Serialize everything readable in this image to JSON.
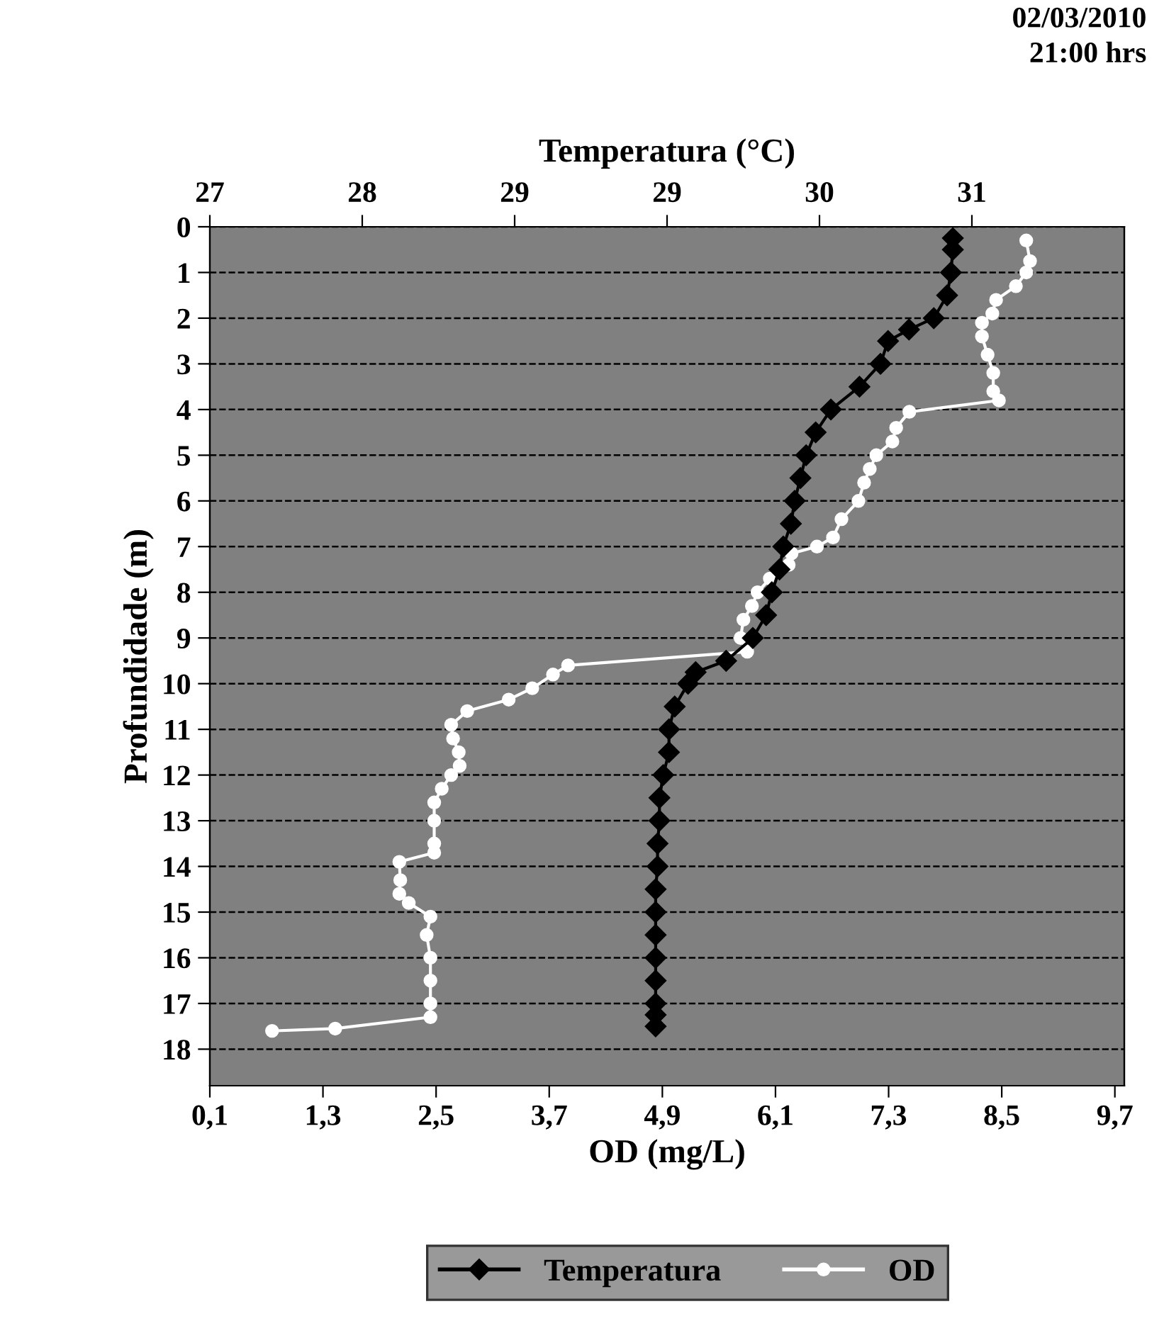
{
  "chart_data": {
    "type": "line",
    "xlabel": "OD (mg/L)",
    "x2label": "Temperatura (°C)",
    "ylabel": "Profundidade (m)",
    "annotations": [
      "02/03/2010\n21:00 hrs"
    ],
    "xlim": [
      0.1,
      9.8
    ],
    "xticks": [
      {
        "value": 0.1,
        "label": "0,1"
      },
      {
        "value": 1.3,
        "label": "1,3"
      },
      {
        "value": 2.5,
        "label": "2,5"
      },
      {
        "value": 3.7,
        "label": "3,7"
      },
      {
        "value": 4.9,
        "label": "4,9"
      },
      {
        "value": 6.1,
        "label": "6,1"
      },
      {
        "value": 7.3,
        "label": "7,3"
      },
      {
        "value": 8.5,
        "label": "8,5"
      },
      {
        "value": 9.7,
        "label": "9,7"
      }
    ],
    "x2lim": [
      27,
      31.8
    ],
    "x2ticks": [
      {
        "value": 27,
        "label": "27"
      },
      {
        "value": 27.8,
        "label": "28"
      },
      {
        "value": 28.6,
        "label": "29"
      },
      {
        "value": 29.4,
        "label": "29"
      },
      {
        "value": 30.2,
        "label": "30"
      },
      {
        "value": 31.0,
        "label": "31"
      }
    ],
    "ylim": [
      18.8,
      0
    ],
    "yticks": [
      0,
      1,
      2,
      3,
      4,
      5,
      6,
      7,
      8,
      9,
      10,
      11,
      12,
      13,
      14,
      15,
      16,
      17,
      18
    ],
    "grid": "y",
    "legend": "bottom",
    "series": [
      {
        "name": "Temperatura",
        "color": "#000000",
        "axis": "x2",
        "marker": "diamond",
        "x": [
          30.9,
          30.9,
          30.89,
          30.87,
          30.8,
          30.67,
          30.56,
          30.52,
          30.41,
          30.26,
          30.18,
          30.13,
          30.1,
          30.07,
          30.05,
          30.01,
          29.99,
          29.95,
          29.92,
          29.85,
          29.71,
          29.55,
          29.51,
          29.44,
          29.41,
          29.41,
          29.38,
          29.36,
          29.36,
          29.35,
          29.35,
          29.34,
          29.34,
          29.34,
          29.34,
          29.34,
          29.34,
          29.34,
          29.34
        ],
        "values": [
          0.25,
          0.5,
          1,
          1.5,
          2,
          2.25,
          2.5,
          3,
          3.5,
          4,
          4.5,
          5,
          5.5,
          6,
          6.5,
          7,
          7.5,
          8,
          8.5,
          9,
          9.5,
          9.75,
          10,
          10.5,
          11,
          11.5,
          12,
          12.5,
          13,
          13.5,
          14,
          14.5,
          15,
          15.5,
          16,
          16.5,
          17,
          17.25,
          17.5
        ]
      },
      {
        "name": "OD",
        "color": "#ffffff",
        "marker": "circle",
        "x": [
          8.76,
          8.8,
          8.76,
          8.65,
          8.44,
          8.4,
          8.29,
          8.29,
          8.35,
          8.41,
          8.41,
          8.47,
          7.52,
          7.38,
          7.34,
          7.17,
          7.1,
          7.04,
          6.98,
          6.8,
          6.71,
          6.54,
          6.27,
          6.24,
          6.04,
          5.91,
          5.85,
          5.76,
          5.73,
          5.8,
          3.9,
          3.74,
          3.52,
          3.27,
          2.83,
          2.66,
          2.68,
          2.74,
          2.75,
          2.66,
          2.56,
          2.48,
          2.48,
          2.48,
          2.48,
          2.11,
          2.12,
          2.11,
          2.21,
          2.44,
          2.4,
          2.44,
          2.44,
          2.44,
          2.44,
          1.43,
          0.76
        ],
        "values": [
          0.3,
          0.75,
          1,
          1.3,
          1.6,
          1.9,
          2.1,
          2.4,
          2.8,
          3.2,
          3.6,
          3.8,
          4.05,
          4.4,
          4.7,
          5,
          5.3,
          5.6,
          6,
          6.4,
          6.8,
          7,
          7.15,
          7.4,
          7.7,
          8,
          8.3,
          8.6,
          9,
          9.3,
          9.6,
          9.8,
          10.1,
          10.35,
          10.6,
          10.9,
          11.2,
          11.5,
          11.8,
          12,
          12.3,
          12.6,
          13,
          13.5,
          13.7,
          13.9,
          14.3,
          14.6,
          14.8,
          15.1,
          15.5,
          16,
          16.5,
          17,
          17.3,
          17.55,
          17.6
        ]
      }
    ]
  }
}
